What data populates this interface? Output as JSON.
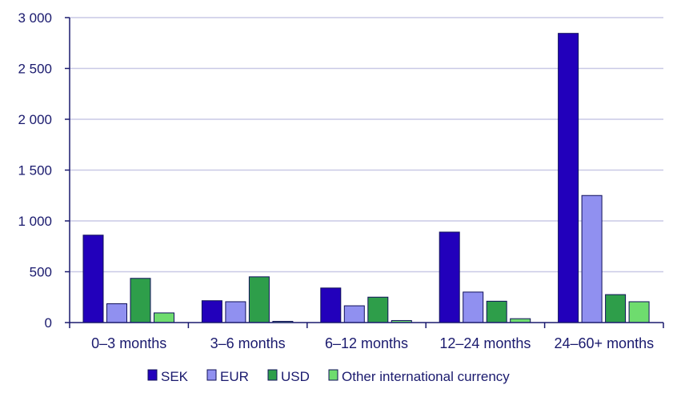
{
  "chart_data": {
    "type": "bar",
    "title": "",
    "xlabel": "",
    "ylabel": "",
    "categories": [
      "0–3 months",
      "3–6 months",
      "6–12 months",
      "12–24 months",
      "24–60+ months"
    ],
    "series": [
      {
        "name": "SEK",
        "color": "#2200bb",
        "values": [
          860,
          215,
          340,
          890,
          2845
        ]
      },
      {
        "name": "EUR",
        "color": "#9090f0",
        "values": [
          185,
          205,
          165,
          300,
          1250
        ]
      },
      {
        "name": "USD",
        "color": "#2e9e4a",
        "values": [
          435,
          450,
          250,
          210,
          275
        ]
      },
      {
        "name": "Other international currency",
        "color": "#6edc6e",
        "values": [
          95,
          12,
          20,
          38,
          205
        ]
      }
    ],
    "ylim": [
      0,
      3000
    ],
    "yticks": [
      0,
      500,
      1000,
      1500,
      2000,
      2500,
      3000
    ],
    "ytick_labels": [
      "0",
      "500",
      "1 000",
      "1 500",
      "2 000",
      "2 500",
      "3 000"
    ],
    "grid": true,
    "legend_position": "bottom"
  }
}
